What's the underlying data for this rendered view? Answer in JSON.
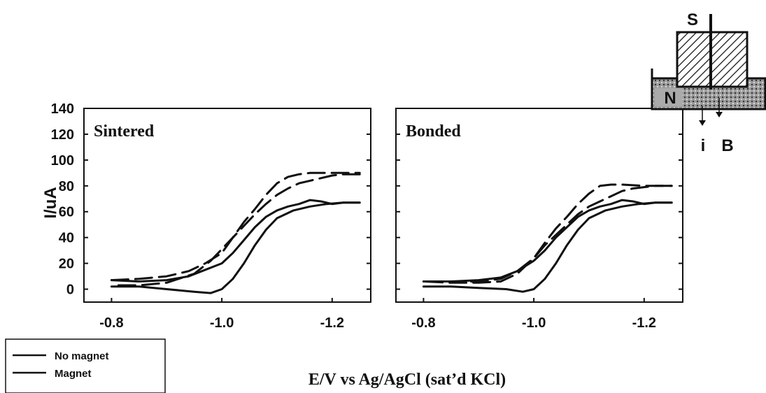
{
  "chart_data": {
    "type": "line",
    "ylabel": "I/uA",
    "xlabel": "E/V vs Ag/AgCl (sat’d KCl)",
    "xlim": [
      -0.75,
      -1.27
    ],
    "ylim": [
      -10,
      140
    ],
    "yticks": [
      "140",
      "120",
      "100",
      "80",
      "60",
      "40",
      "20",
      "0"
    ],
    "ytick_values": [
      140,
      120,
      100,
      80,
      60,
      40,
      20,
      0
    ],
    "xticks": [
      "-0.8",
      "-1.0",
      "-1.2"
    ],
    "xtick_values": [
      -0.8,
      -1.0,
      -1.2
    ],
    "legend": {
      "placement": "bottom-left",
      "entries": [
        "No magnet",
        "Magnet"
      ]
    },
    "panels": [
      {
        "title": "Sintered",
        "series": [
          {
            "style": "solid",
            "x": [
              -0.8,
              -0.85,
              -0.9,
              -0.95,
              -0.98,
              -1.0,
              -1.02,
              -1.04,
              -1.06,
              -1.08,
              -1.1,
              -1.13,
              -1.16,
              -1.19,
              -1.22,
              -1.25
            ],
            "y": [
              2,
              2,
              0,
              -2,
              -3,
              0,
              8,
              20,
              34,
              46,
              55,
              61,
              64,
              66,
              67,
              67
            ]
          },
          {
            "style": "solid",
            "x": [
              -1.25,
              -1.22,
              -1.2,
              -1.18,
              -1.16,
              -1.14,
              -1.12,
              -1.1,
              -1.08,
              -1.06,
              -1.04,
              -1.02,
              -1.0,
              -0.97,
              -0.94,
              -0.9,
              -0.85,
              -0.8
            ],
            "y": [
              67,
              67,
              66,
              68,
              69,
              66,
              64,
              61,
              56,
              48,
              38,
              28,
              20,
              15,
              10,
              7,
              6,
              7
            ]
          },
          {
            "style": "dashed",
            "x": [
              -1.25,
              -1.22,
              -1.2,
              -1.18,
              -1.16,
              -1.14,
              -1.12,
              -1.1,
              -1.08,
              -1.06,
              -1.04,
              -1.02,
              -1.0,
              -0.98,
              -0.95,
              -0.9,
              -0.85,
              -0.8
            ],
            "y": [
              89,
              89,
              88,
              86,
              84,
              82,
              78,
              73,
              66,
              58,
              49,
              40,
              31,
              22,
              12,
              5,
              3,
              3
            ]
          },
          {
            "style": "dashed",
            "x": [
              -0.8,
              -0.85,
              -0.9,
              -0.94,
              -0.97,
              -1.0,
              -1.02,
              -1.04,
              -1.06,
              -1.08,
              -1.1,
              -1.12,
              -1.14,
              -1.16,
              -1.2,
              -1.25
            ],
            "y": [
              7,
              8,
              10,
              14,
              20,
              28,
              40,
              52,
              62,
              73,
              82,
              87,
              89,
              90,
              90,
              90
            ]
          }
        ]
      },
      {
        "title": "Bonded",
        "series": [
          {
            "style": "solid",
            "x": [
              -0.8,
              -0.85,
              -0.9,
              -0.95,
              -0.98,
              -1.0,
              -1.02,
              -1.04,
              -1.06,
              -1.08,
              -1.1,
              -1.13,
              -1.16,
              -1.19,
              -1.22,
              -1.25
            ],
            "y": [
              2,
              2,
              1,
              0,
              -2,
              0,
              8,
              20,
              34,
              46,
              55,
              61,
              64,
              66,
              67,
              67
            ]
          },
          {
            "style": "solid",
            "x": [
              -1.25,
              -1.22,
              -1.2,
              -1.18,
              -1.16,
              -1.14,
              -1.12,
              -1.1,
              -1.08,
              -1.06,
              -1.04,
              -1.02,
              -1.0,
              -0.97,
              -0.94,
              -0.9,
              -0.85,
              -0.8
            ],
            "y": [
              67,
              67,
              66,
              68,
              69,
              66,
              64,
              61,
              56,
              48,
              40,
              30,
              22,
              14,
              9,
              7,
              6,
              6
            ]
          },
          {
            "style": "dashed",
            "x": [
              -1.25,
              -1.22,
              -1.2,
              -1.18,
              -1.16,
              -1.14,
              -1.12,
              -1.1,
              -1.08,
              -1.06,
              -1.04,
              -1.02,
              -1.0,
              -0.97,
              -0.94,
              -0.9,
              -0.85,
              -0.8
            ],
            "y": [
              80,
              80,
              79,
              78,
              76,
              72,
              68,
              64,
              58,
              50,
              42,
              34,
              24,
              12,
              6,
              5,
              5,
              6
            ]
          },
          {
            "style": "dashed",
            "x": [
              -0.8,
              -0.85,
              -0.9,
              -0.94,
              -0.97,
              -1.0,
              -1.02,
              -1.04,
              -1.06,
              -1.08,
              -1.1,
              -1.12,
              -1.14,
              -1.16,
              -1.2,
              -1.25
            ],
            "y": [
              6,
              6,
              6,
              8,
              14,
              24,
              36,
              47,
              56,
              66,
              74,
              80,
              81,
              81,
              80,
              80
            ]
          }
        ]
      }
    ]
  },
  "diagram": {
    "labels": [
      "S",
      "N",
      "i",
      "B"
    ]
  }
}
